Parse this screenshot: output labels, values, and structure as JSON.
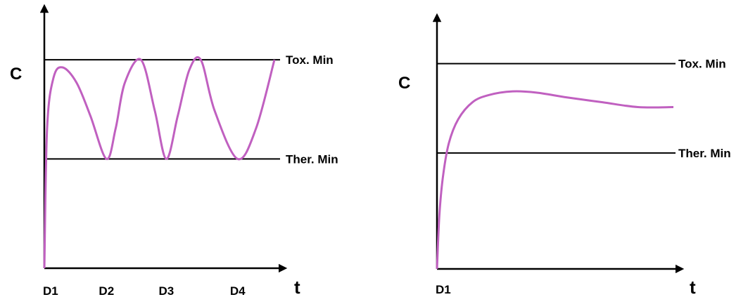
{
  "colors": {
    "axis": "#000000",
    "curve": "#c060c0",
    "background": "#ffffff"
  },
  "chart_data": [
    {
      "type": "line",
      "ylabel": "C",
      "xlabel": "t",
      "grid": false,
      "ylim": [
        0,
        1
      ],
      "xlim": [
        0,
        1
      ],
      "x_ticks": [
        "D1",
        "D2",
        "D3",
        "D4"
      ],
      "x_tick_values": [
        0.0,
        0.27,
        0.53,
        0.84
      ],
      "reference_lines": [
        {
          "label": "Tox. Min",
          "y": 0.82
        },
        {
          "label": "Ther. Min",
          "y": 0.43
        }
      ],
      "series": [
        {
          "points": [
            [
              0.0,
              0.0
            ],
            [
              0.012,
              0.55
            ],
            [
              0.04,
              0.75
            ],
            [
              0.08,
              0.79
            ],
            [
              0.14,
              0.73
            ],
            [
              0.2,
              0.6
            ],
            [
              0.27,
              0.43
            ],
            [
              0.31,
              0.55
            ],
            [
              0.35,
              0.73
            ],
            [
              0.42,
              0.82
            ],
            [
              0.48,
              0.62
            ],
            [
              0.53,
              0.43
            ],
            [
              0.58,
              0.6
            ],
            [
              0.63,
              0.78
            ],
            [
              0.68,
              0.82
            ],
            [
              0.74,
              0.62
            ],
            [
              0.84,
              0.43
            ],
            [
              0.92,
              0.55
            ],
            [
              1.0,
              0.82
            ]
          ]
        }
      ]
    },
    {
      "type": "line",
      "ylabel": "C",
      "xlabel": "t",
      "grid": false,
      "ylim": [
        0,
        1
      ],
      "xlim": [
        0,
        1
      ],
      "x_ticks": [
        "D1"
      ],
      "x_tick_values": [
        0.0
      ],
      "reference_lines": [
        {
          "label": "Tox. Min",
          "y": 0.85
        },
        {
          "label": "Ther. Min",
          "y": 0.48
        }
      ],
      "series": [
        {
          "points": [
            [
              0.0,
              0.0
            ],
            [
              0.01,
              0.22
            ],
            [
              0.025,
              0.38
            ],
            [
              0.05,
              0.52
            ],
            [
              0.09,
              0.62
            ],
            [
              0.15,
              0.69
            ],
            [
              0.22,
              0.72
            ],
            [
              0.32,
              0.735
            ],
            [
              0.42,
              0.73
            ],
            [
              0.55,
              0.71
            ],
            [
              0.7,
              0.69
            ],
            [
              0.85,
              0.67
            ],
            [
              1.0,
              0.67
            ]
          ]
        }
      ]
    }
  ]
}
